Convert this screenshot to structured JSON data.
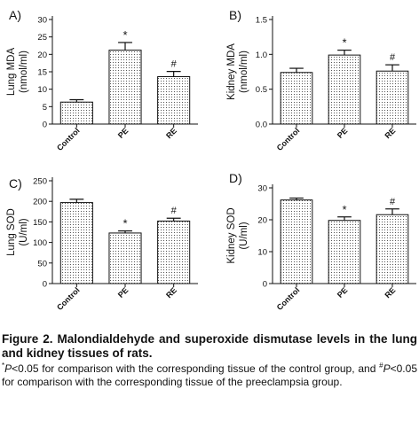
{
  "chart_data": [
    {
      "type": "bar",
      "panel_label": "A)",
      "ylabel": "Lung MDA\n(nmol/ml)",
      "categories": [
        "Control",
        "PE",
        "RE"
      ],
      "values": [
        6.3,
        21.2,
        13.6
      ],
      "errors": [
        0.7,
        2.2,
        1.5
      ],
      "annotations": [
        "",
        "*",
        "#"
      ],
      "ylim": [
        0,
        30
      ],
      "yticks": [
        0,
        5,
        10,
        15,
        20,
        25,
        30
      ]
    },
    {
      "type": "bar",
      "panel_label": "B)",
      "ylabel": "Kidney MDA\n(nmol/ml)",
      "categories": [
        "Control",
        "PE",
        "RE"
      ],
      "values": [
        0.74,
        0.99,
        0.76
      ],
      "errors": [
        0.06,
        0.07,
        0.09
      ],
      "annotations": [
        "",
        "*",
        "#"
      ],
      "ylim": [
        0,
        1.5
      ],
      "yticks": [
        "0.0",
        "0.5",
        "1.0",
        "1.5"
      ]
    },
    {
      "type": "bar",
      "panel_label": "C)",
      "ylabel": "Lung SOD\n(U/ml)",
      "categories": [
        "Control",
        "PE",
        "RE"
      ],
      "values": [
        197,
        123,
        152
      ],
      "errors": [
        8,
        5,
        7
      ],
      "annotations": [
        "",
        "*",
        "#"
      ],
      "ylim": [
        0,
        250
      ],
      "yticks": [
        0,
        50,
        100,
        150,
        200,
        250
      ]
    },
    {
      "type": "bar",
      "panel_label": "D)",
      "ylabel": "Kidney SOD\n(U/ml)",
      "categories": [
        "Control",
        "PE",
        "RE"
      ],
      "values": [
        26.2,
        19.8,
        21.6
      ],
      "errors": [
        0.6,
        1.1,
        1.8
      ],
      "annotations": [
        "",
        "*",
        "#"
      ],
      "ylim": [
        0,
        30
      ],
      "yticks": [
        0,
        10,
        20,
        30
      ]
    }
  ],
  "caption": {
    "title": "Figure 2. Malondialdehyde and superoxide dismutase levels in the lung and kidney tissues of rats.",
    "star_mark": "*",
    "star_p": "P",
    "note_a": "<0.05 for comparison with the corresponding tissue of the control group, and ",
    "hash_mark": "#",
    "hash_p": "P",
    "note_b": "<0.05 for comparison with the corresponding tissue of the preeclampsia group."
  }
}
